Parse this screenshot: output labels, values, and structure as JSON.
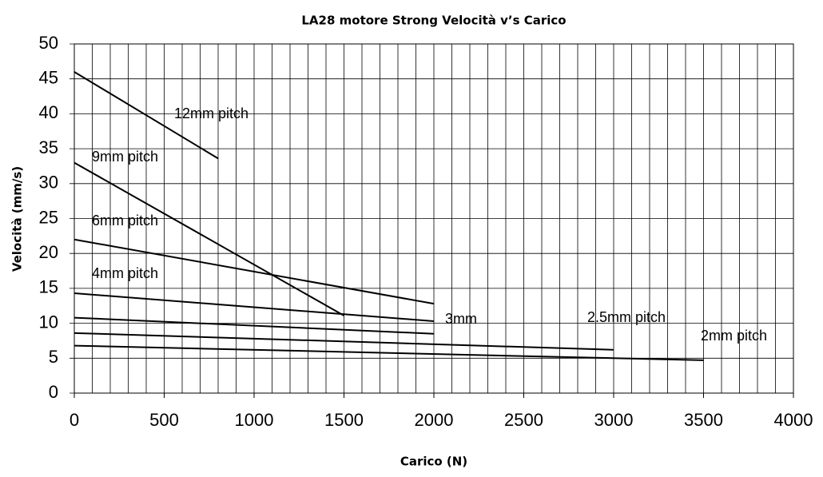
{
  "chart_data": {
    "type": "line",
    "title": "LA28 motore Strong Velocità v’s Carico",
    "xlabel": "Carico (N)",
    "ylabel": "Velocità (mm/s)",
    "xlim": [
      0,
      4000
    ],
    "xticks": [
      0,
      500,
      1000,
      1500,
      2000,
      2500,
      3000,
      3500,
      4000
    ],
    "x_minor_ticks": [
      0,
      100,
      200,
      300,
      400,
      500,
      600,
      700,
      800,
      900,
      1000,
      1100,
      1200,
      1300,
      1400,
      1500,
      1600,
      1700,
      1800,
      1900,
      2000,
      2100,
      2200,
      2300,
      2400,
      2500,
      2600,
      2700,
      2800,
      2900,
      3000,
      3100,
      3200,
      3300,
      3400,
      3500,
      3600,
      3700,
      3800,
      3900,
      4000
    ],
    "ylim": [
      0,
      50
    ],
    "yticks": [
      0,
      5,
      10,
      15,
      20,
      25,
      30,
      35,
      40,
      45,
      50
    ],
    "grid": true,
    "series": [
      {
        "name": "12mm pitch",
        "color": "#000000",
        "x": [
          0,
          800
        ],
        "values": [
          46,
          33.6
        ]
      },
      {
        "name": "9mm pitch",
        "color": "#000000",
        "x": [
          0,
          1500
        ],
        "values": [
          33,
          11.1
        ]
      },
      {
        "name": "6mm pitch",
        "color": "#000000",
        "x": [
          0,
          2000
        ],
        "values": [
          22,
          12.8
        ]
      },
      {
        "name": "4mm pitch",
        "color": "#000000",
        "x": [
          0,
          2000
        ],
        "values": [
          14.3,
          10.3
        ]
      },
      {
        "name": "3mm",
        "color": "#000000",
        "x": [
          0,
          2000
        ],
        "values": [
          10.8,
          8.5
        ]
      },
      {
        "name": "2.5mm pitch",
        "color": "#000000",
        "x": [
          0,
          3000
        ],
        "values": [
          8.6,
          6.2
        ]
      },
      {
        "name": "2mm pitch",
        "color": "#000000",
        "x": [
          0,
          3500
        ],
        "values": [
          6.8,
          4.7
        ]
      }
    ]
  }
}
